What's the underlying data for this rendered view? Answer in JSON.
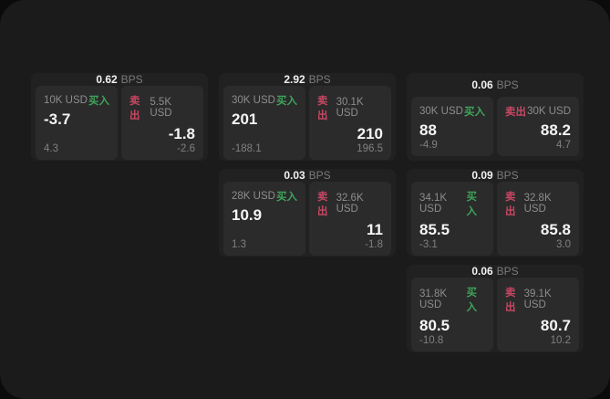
{
  "page": {
    "bg_outer": "#0b0b0b",
    "bg_surface": "#1b1b1b"
  },
  "labels": {
    "bps_unit": "BPS",
    "buy": "买入",
    "sell": "卖出"
  },
  "colors": {
    "buy": "#3fa35a",
    "sell": "#c84763",
    "card_bg": "#212121",
    "panel_bg": "#2b2b2b"
  },
  "cards": [
    {
      "col": 1,
      "row": 1,
      "bps": "0.62",
      "buy": {
        "size": "10K USD",
        "price": "-3.7",
        "delta": "4.3"
      },
      "sell": {
        "size": "5.5K USD",
        "price": "-1.8",
        "delta": "-2.6"
      }
    },
    {
      "col": 2,
      "row": 1,
      "bps": "2.92",
      "buy": {
        "size": "30K USD",
        "price": "201",
        "delta": "-188.1"
      },
      "sell": {
        "size": "30.1K USD",
        "price": "210",
        "delta": "196.5"
      }
    },
    {
      "col": 3,
      "row": 1,
      "bps": "0.06",
      "buy": {
        "size": "30K USD",
        "price": "88",
        "delta": "-4.9"
      },
      "sell": {
        "size": "30K USD",
        "price": "88.2",
        "delta": "4.7"
      }
    },
    {
      "col": 2,
      "row": 2,
      "bps": "0.03",
      "buy": {
        "size": "28K USD",
        "price": "10.9",
        "delta": "1.3"
      },
      "sell": {
        "size": "32.6K USD",
        "price": "11",
        "delta": "-1.8"
      }
    },
    {
      "col": 3,
      "row": 2,
      "bps": "0.09",
      "buy": {
        "size": "34.1K USD",
        "price": "85.5",
        "delta": "-3.1"
      },
      "sell": {
        "size": "32.8K USD",
        "price": "85.8",
        "delta": "3.0"
      }
    },
    {
      "col": 3,
      "row": 3,
      "bps": "0.06",
      "buy": {
        "size": "31.8K USD",
        "price": "80.5",
        "delta": "-10.8"
      },
      "sell": {
        "size": "39.1K USD",
        "price": "80.7",
        "delta": "10.2"
      }
    }
  ]
}
